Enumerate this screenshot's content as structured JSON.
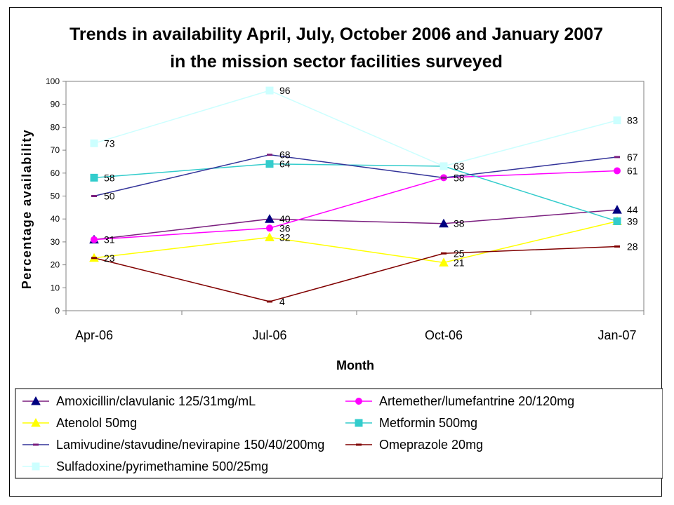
{
  "chart_data": {
    "type": "line",
    "title": [
      "Trends in availability April, July, October 2006 and January 2007",
      "in the mission sector facilities surveyed"
    ],
    "xlabel": "Month",
    "ylabel": "Percentage availability",
    "categories": [
      "Apr-06",
      "Jul-06",
      "Oct-06",
      "Jan-07"
    ],
    "ylim": [
      0,
      100
    ],
    "yticks": [
      "0",
      "10",
      "20",
      "30",
      "40",
      "50",
      "60",
      "70",
      "80",
      "90",
      "100"
    ],
    "grid": false,
    "legend_position": "bottom",
    "series": [
      {
        "name": "Amoxicillin/clavulanic 125/31mg/mL",
        "values": [
          31,
          40,
          38,
          44
        ],
        "color": "#7B1F7F",
        "marker": "triangle",
        "marker_color": "#00007F"
      },
      {
        "name": "Artemether/lumefantrine 20/120mg",
        "values": [
          31,
          36,
          58,
          61
        ],
        "color": "#FF00FF",
        "marker": "circle",
        "marker_color": "#FF00FF"
      },
      {
        "name": "Atenolol 50mg",
        "values": [
          23,
          32,
          21,
          39
        ],
        "color": "#FFFF00",
        "marker": "triangle",
        "marker_color": "#FFFF00"
      },
      {
        "name": "Metformin 500mg",
        "values": [
          58,
          64,
          63,
          39
        ],
        "color": "#33CCCC",
        "marker": "square",
        "marker_color": "#33CCCC"
      },
      {
        "name": "Lamivudine/stavudine/nevirapine 150/40/200mg",
        "values": [
          50,
          68,
          58,
          67
        ],
        "color": "#333399",
        "marker": "dash",
        "marker_color": "#7B1F7F"
      },
      {
        "name": "Omeprazole 20mg",
        "values": [
          23,
          4,
          25,
          28
        ],
        "color": "#800000",
        "marker": "dash",
        "marker_color": "#800000"
      },
      {
        "name": "Sulfadoxine/pyrimethamine 500/25mg",
        "values": [
          73,
          96,
          63,
          83
        ],
        "color": "#CCFFFF",
        "marker": "square",
        "marker_color": "#CCFFFF"
      }
    ],
    "data_labels": [
      {
        "series": 0,
        "point": 1,
        "text": "40"
      },
      {
        "series": 0,
        "point": 2,
        "text": "38"
      },
      {
        "series": 0,
        "point": 3,
        "text": "44"
      },
      {
        "series": 1,
        "point": 0,
        "text": "31"
      },
      {
        "series": 1,
        "point": 1,
        "text": "36"
      },
      {
        "series": 1,
        "point": 2,
        "text": "58"
      },
      {
        "series": 1,
        "point": 3,
        "text": "61"
      },
      {
        "series": 2,
        "point": 0,
        "text": "23"
      },
      {
        "series": 2,
        "point": 1,
        "text": "32"
      },
      {
        "series": 2,
        "point": 2,
        "text": "21"
      },
      {
        "series": 2,
        "point": 3,
        "text": "39"
      },
      {
        "series": 3,
        "point": 0,
        "text": "58"
      },
      {
        "series": 3,
        "point": 1,
        "text": "64"
      },
      {
        "series": 3,
        "point": 2,
        "text": "63"
      },
      {
        "series": 4,
        "point": 0,
        "text": "50"
      },
      {
        "series": 4,
        "point": 1,
        "text": "68"
      },
      {
        "series": 4,
        "point": 3,
        "text": "67"
      },
      {
        "series": 5,
        "point": 1,
        "text": "4"
      },
      {
        "series": 5,
        "point": 2,
        "text": "25"
      },
      {
        "series": 5,
        "point": 3,
        "text": "28"
      },
      {
        "series": 6,
        "point": 0,
        "text": "73"
      },
      {
        "series": 6,
        "point": 1,
        "text": "96"
      },
      {
        "series": 6,
        "point": 3,
        "text": "83"
      }
    ]
  }
}
